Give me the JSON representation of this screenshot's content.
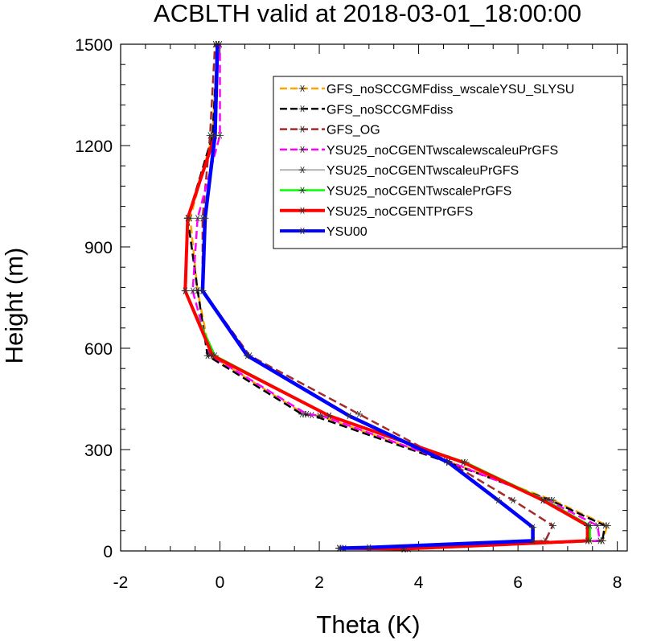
{
  "chart_data": {
    "type": "line",
    "title": "ACBLTH valid at 2018-03-01_18:00:00",
    "xlabel": "Theta (K)",
    "ylabel": "Height (m)",
    "xlim": [
      -2,
      8.2
    ],
    "ylim": [
      0,
      1500
    ],
    "xticks": [
      -2,
      0,
      2,
      4,
      6,
      8
    ],
    "yticks": [
      0,
      300,
      600,
      900,
      1200,
      1500
    ],
    "legend_position": "top-right",
    "series": [
      {
        "name": "GFS_noSCCGMFdiss_wscaleYSU_SLYSU",
        "color": "#ffa500",
        "dash": "10,5",
        "width": 2.5,
        "points": [
          [
            2.5,
            8
          ],
          [
            3.8,
            6
          ],
          [
            7.7,
            30
          ],
          [
            7.8,
            75
          ],
          [
            6.7,
            150
          ],
          [
            4.6,
            265
          ],
          [
            2.0,
            400
          ],
          [
            1.7,
            405
          ],
          [
            -0.2,
            580
          ],
          [
            -0.45,
            770
          ],
          [
            -0.6,
            985
          ],
          [
            -0.15,
            1230
          ],
          [
            -0.05,
            1500
          ]
        ]
      },
      {
        "name": "GFS_noSCCGMFdiss",
        "color": "#000000",
        "dash": "10,5",
        "width": 2.5,
        "points": [
          [
            2.4,
            8
          ],
          [
            3.7,
            6
          ],
          [
            7.7,
            30
          ],
          [
            7.75,
            75
          ],
          [
            6.65,
            150
          ],
          [
            4.6,
            262
          ],
          [
            1.85,
            402
          ],
          [
            1.65,
            405
          ],
          [
            -0.25,
            578
          ],
          [
            -0.45,
            772
          ],
          [
            -0.65,
            985
          ],
          [
            -0.15,
            1230
          ],
          [
            -0.05,
            1500
          ]
        ]
      },
      {
        "name": "GFS_OG",
        "color": "#a52a2a",
        "dash": "10,5",
        "width": 2.5,
        "points": [
          [
            2.45,
            8
          ],
          [
            3.7,
            5
          ],
          [
            6.55,
            30
          ],
          [
            6.7,
            75
          ],
          [
            5.9,
            150
          ],
          [
            4.55,
            268
          ],
          [
            2.8,
            405
          ],
          [
            0.6,
            578
          ],
          [
            -0.35,
            770
          ],
          [
            -0.35,
            985
          ],
          [
            -0.2,
            1230
          ],
          [
            -0.1,
            1500
          ]
        ]
      },
      {
        "name": "YSU25_noCGENTwscalewscaleuPrGFS",
        "color": "#ff00ff",
        "dash": "10,5",
        "width": 2.5,
        "points": [
          [
            2.4,
            8
          ],
          [
            3.7,
            6
          ],
          [
            7.65,
            30
          ],
          [
            7.6,
            75
          ],
          [
            6.6,
            150
          ],
          [
            4.6,
            265
          ],
          [
            2.05,
            400
          ],
          [
            1.75,
            405
          ],
          [
            -0.2,
            580
          ],
          [
            -0.55,
            770
          ],
          [
            -0.45,
            985
          ],
          [
            0.0,
            1230
          ],
          [
            0.0,
            1500
          ]
        ]
      },
      {
        "name": "YSU25_noCGENTwscaleuPrGFS",
        "color": "#b0b0b0",
        "dash": "",
        "width": 2,
        "points": [
          [
            2.4,
            8
          ],
          [
            3.7,
            6
          ],
          [
            7.4,
            30
          ],
          [
            7.4,
            75
          ],
          [
            6.5,
            150
          ],
          [
            4.9,
            262
          ],
          [
            2.2,
            400
          ],
          [
            -0.15,
            578
          ],
          [
            -0.7,
            770
          ],
          [
            -0.65,
            985
          ],
          [
            -0.1,
            1230
          ],
          [
            -0.05,
            1500
          ]
        ]
      },
      {
        "name": "YSU25_noCGENTwscalePrGFS",
        "color": "#00ff00",
        "dash": "",
        "width": 2.5,
        "points": [
          [
            2.4,
            8
          ],
          [
            3.7,
            6
          ],
          [
            7.45,
            30
          ],
          [
            7.45,
            75
          ],
          [
            6.55,
            150
          ],
          [
            4.95,
            262
          ],
          [
            2.2,
            400
          ],
          [
            -0.1,
            578
          ],
          [
            -0.7,
            770
          ],
          [
            -0.65,
            985
          ],
          [
            -0.1,
            1230
          ],
          [
            -0.05,
            1500
          ]
        ]
      },
      {
        "name": "YSU25_noCGENTPrGFS",
        "color": "#ff0000",
        "dash": "",
        "width": 4,
        "points": [
          [
            2.4,
            8
          ],
          [
            3.7,
            6
          ],
          [
            7.4,
            30
          ],
          [
            7.4,
            75
          ],
          [
            6.5,
            150
          ],
          [
            4.9,
            262
          ],
          [
            2.2,
            400
          ],
          [
            -0.15,
            578
          ],
          [
            -0.7,
            770
          ],
          [
            -0.65,
            985
          ],
          [
            -0.1,
            1230
          ],
          [
            -0.05,
            1500
          ]
        ]
      },
      {
        "name": "YSU00",
        "color": "#0000ff",
        "dash": "",
        "width": 4.5,
        "points": [
          [
            2.4,
            8
          ],
          [
            3.0,
            10
          ],
          [
            6.3,
            30
          ],
          [
            6.3,
            70
          ],
          [
            5.6,
            150
          ],
          [
            4.6,
            262
          ],
          [
            2.6,
            400
          ],
          [
            0.55,
            578
          ],
          [
            -0.35,
            770
          ],
          [
            -0.3,
            985
          ],
          [
            -0.1,
            1230
          ],
          [
            -0.05,
            1500
          ]
        ]
      }
    ]
  }
}
